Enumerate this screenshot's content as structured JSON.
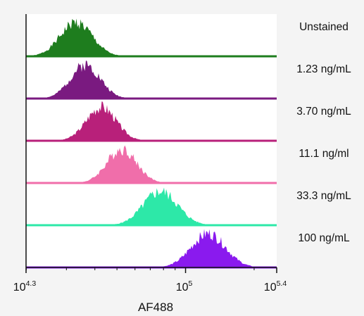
{
  "chart_data": {
    "type": "area",
    "subtype": "stacked-histogram-overlay",
    "xlabel": "AF488",
    "x_scale": "log10",
    "xlim_exponent": [
      4.3,
      5.4
    ],
    "x_ticks": [
      {
        "base": "10",
        "exp": "4.3",
        "value_exp": 4.3
      },
      {
        "base": "10",
        "exp": "5",
        "value_exp": 5.0
      },
      {
        "base": "10",
        "exp": "5.4",
        "value_exp": 5.4
      }
    ],
    "grid": false,
    "series": [
      {
        "name": "Unstained",
        "color": "#1e7d1e",
        "peak_log10": 4.52,
        "sd_log10": 0.07
      },
      {
        "name": "1.23 ng/mL",
        "color": "#7a1a80",
        "peak_log10": 4.56,
        "sd_log10": 0.065
      },
      {
        "name": "3.70 ng/mL",
        "color": "#b8207a",
        "peak_log10": 4.63,
        "sd_log10": 0.065
      },
      {
        "name": "11.1 ng/ml",
        "color": "#f06eaa",
        "peak_log10": 4.72,
        "sd_log10": 0.065
      },
      {
        "name": "33.3 ng/mL",
        "color": "#2de8a8",
        "peak_log10": 4.89,
        "sd_log10": 0.075
      },
      {
        "name": "100 ng/mL",
        "color": "#8a1aee",
        "peak_log10": 5.1,
        "sd_log10": 0.075
      }
    ]
  }
}
